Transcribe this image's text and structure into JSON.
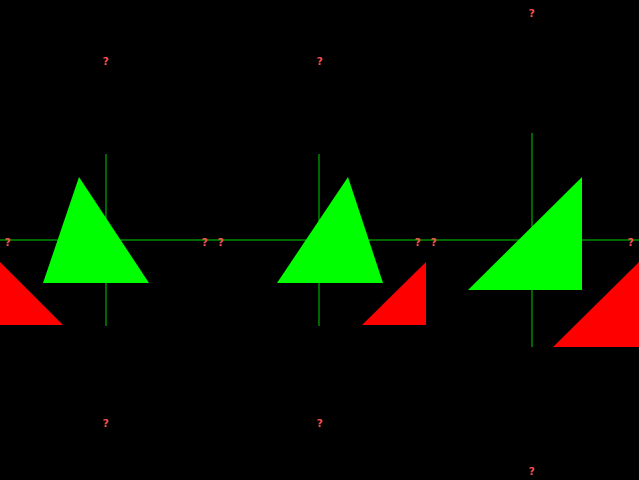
{
  "palette": {
    "background": "#000000",
    "axis": "#00cc00",
    "green_shape": "#00ff00",
    "red_shape": "#ff0000",
    "marker": "#ff4d4d"
  },
  "marker_glyph": "?",
  "panels": [
    {
      "markers": {
        "top": "?",
        "bottom": "?",
        "left": "?",
        "right": "?"
      },
      "green_shape": "green-triangle",
      "red_shape": "red-triangle"
    },
    {
      "markers": {
        "top": "?",
        "bottom": "?",
        "left": "?",
        "right": "?"
      },
      "green_shape": "green-triangle",
      "red_shape": "red-right-triangle"
    },
    {
      "markers": {
        "top": "?",
        "bottom": "?",
        "left": "?",
        "right": "?"
      },
      "green_shape": "green-right-triangle",
      "red_shape": "red-right-triangle"
    }
  ]
}
